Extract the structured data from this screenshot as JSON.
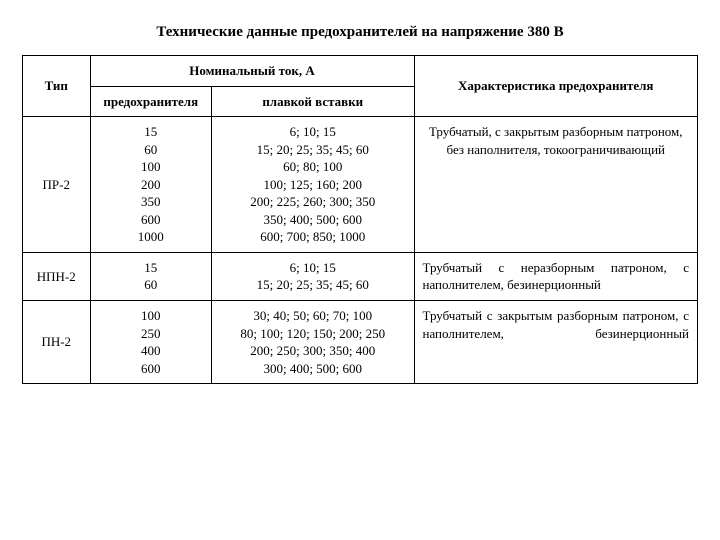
{
  "title": "Технические данные предохранителей на напряжение 380 В",
  "headers": {
    "type": "Тип",
    "nominal": "Номинальный ток, А",
    "char": "Характеристика предохранителя",
    "sub_fuse": "предохранителя",
    "sub_insert": "плавкой вставки"
  },
  "rows": [
    {
      "type": "ПР-2",
      "a": [
        "15",
        "60",
        "100",
        "200",
        "350",
        "600",
        "1000"
      ],
      "b": [
        "6; 10; 15",
        "15; 20; 25; 35; 45; 60",
        "60; 80; 100",
        "100; 125; 160; 200",
        "200; 225; 260; 300; 350",
        "350; 400; 500; 600",
        "600; 700; 850; 1000"
      ],
      "c": "Трубчатый, с закрытым разборным патроном, без наполнителя, токоограничивающий",
      "c_style": "center"
    },
    {
      "type": "НПН-2",
      "a": [
        "15",
        "60"
      ],
      "b": [
        "6; 10; 15",
        "15; 20; 25; 35; 45; 60"
      ],
      "c": "Трубчатый с неразборным патроном, с наполнителем, безинерционный",
      "c_style": "justify"
    },
    {
      "type": "ПН-2",
      "a": [
        "100",
        "250",
        "400",
        "600"
      ],
      "b": [
        "30; 40; 50; 60; 70; 100",
        "80; 100; 120; 150; 200; 250",
        "200; 250; 300; 350; 400",
        "300; 400; 500; 600"
      ],
      "c": "Трубчатый с закрытым разборным патроном, с наполнителем, безинерционный",
      "c_style": "wide"
    }
  ],
  "style": {
    "background": "#ffffff",
    "text_color": "#000000",
    "border_color": "#000000",
    "font_family": "Times New Roman",
    "title_fontsize": 15,
    "cell_fontsize": 13
  }
}
